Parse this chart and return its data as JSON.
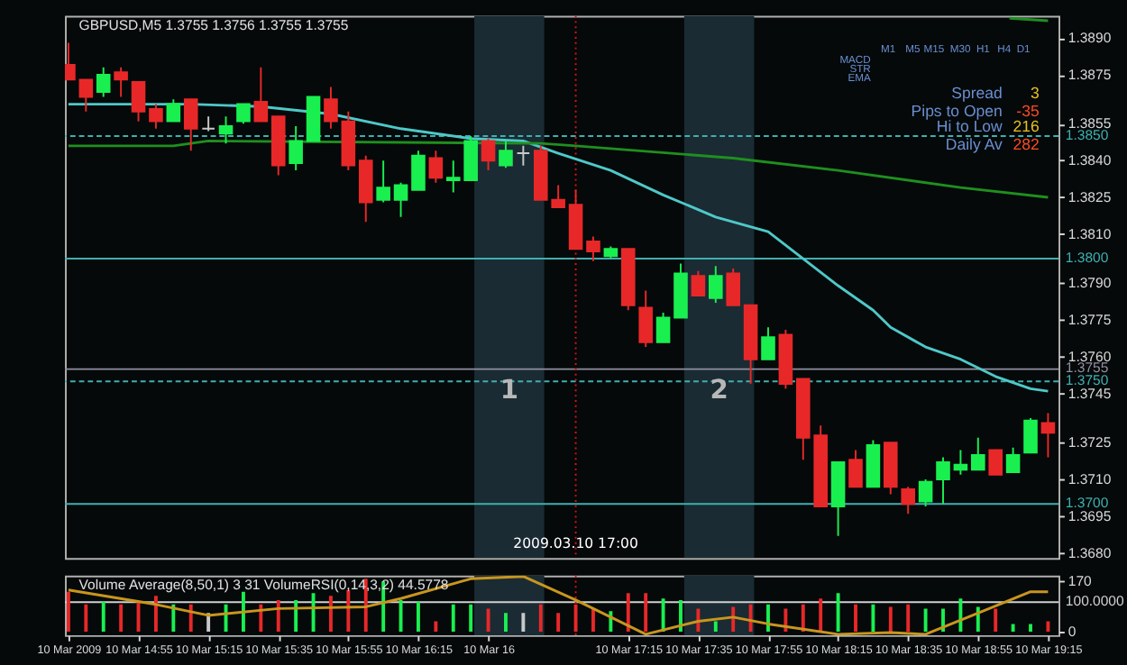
{
  "chart_data": [
    {
      "type": "candlestick",
      "title": "GBPUSD,M5  1.3755 1.3756 1.3755 1.3755",
      "x": [
        "2009-03-10T14:35",
        "2009-03-10T14:40",
        "2009-03-10T14:45",
        "2009-03-10T14:50",
        "2009-03-10T14:55",
        "2009-03-10T15:00",
        "2009-03-10T15:05",
        "2009-03-10T15:10",
        "2009-03-10T15:15",
        "2009-03-10T15:20",
        "2009-03-10T15:25",
        "2009-03-10T15:30",
        "2009-03-10T15:35",
        "2009-03-10T15:40",
        "2009-03-10T15:45",
        "2009-03-10T15:50",
        "2009-03-10T15:55",
        "2009-03-10T16:00",
        "2009-03-10T16:05",
        "2009-03-10T16:10",
        "2009-03-10T16:15",
        "2009-03-10T16:20",
        "2009-03-10T16:25",
        "2009-03-10T16:30",
        "2009-03-10T16:35",
        "2009-03-10T16:40",
        "2009-03-10T16:45",
        "2009-03-10T16:50",
        "2009-03-10T16:55",
        "2009-03-10T17:00",
        "2009-03-10T17:05",
        "2009-03-10T17:10",
        "2009-03-10T17:15",
        "2009-03-10T17:20",
        "2009-03-10T17:25",
        "2009-03-10T17:30",
        "2009-03-10T17:35",
        "2009-03-10T17:40",
        "2009-03-10T17:45",
        "2009-03-10T17:50",
        "2009-03-10T17:55",
        "2009-03-10T18:00",
        "2009-03-10T18:05",
        "2009-03-10T18:10",
        "2009-03-10T18:15",
        "2009-03-10T18:20",
        "2009-03-10T18:25",
        "2009-03-10T18:30",
        "2009-03-10T18:35",
        "2009-03-10T18:40",
        "2009-03-10T18:45",
        "2009-03-10T18:50",
        "2009-03-10T18:55",
        "2009-03-10T19:00",
        "2009-03-10T19:05",
        "2009-03-10T19:10",
        "2009-03-10T19:15"
      ],
      "ohlc": [
        [
          1.3879,
          1.3888,
          1.3873,
          1.3873
        ],
        [
          1.3873,
          1.3873,
          1.386,
          1.3866
        ],
        [
          1.3868,
          1.3878,
          1.3866,
          1.3875
        ],
        [
          1.3876,
          1.3878,
          1.3866,
          1.3873
        ],
        [
          1.3872,
          1.3872,
          1.3856,
          1.386
        ],
        [
          1.3861,
          1.3863,
          1.3853,
          1.3856
        ],
        [
          1.3856,
          1.3865,
          1.3856,
          1.3863
        ],
        [
          1.3865,
          1.3865,
          1.3844,
          1.3853
        ],
        [
          1.3853,
          1.3858,
          1.3852,
          1.3853
        ],
        [
          1.3851,
          1.3858,
          1.3847,
          1.3854
        ],
        [
          1.3856,
          1.3863,
          1.3855,
          1.3863
        ],
        [
          1.3864,
          1.3878,
          1.3856,
          1.3856
        ],
        [
          1.3858,
          1.3858,
          1.3834,
          1.3838
        ],
        [
          1.3839,
          1.3854,
          1.3836,
          1.3848
        ],
        [
          1.3848,
          1.3866,
          1.3848,
          1.3866
        ],
        [
          1.3865,
          1.387,
          1.3853,
          1.3856
        ],
        [
          1.3856,
          1.386,
          1.3836,
          1.3838
        ],
        [
          1.384,
          1.3842,
          1.3815,
          1.3823
        ],
        [
          1.3824,
          1.384,
          1.3823,
          1.3829
        ],
        [
          1.3824,
          1.3831,
          1.3817,
          1.383
        ],
        [
          1.3828,
          1.3844,
          1.3828,
          1.3842
        ],
        [
          1.3841,
          1.3844,
          1.3831,
          1.3833
        ],
        [
          1.3832,
          1.384,
          1.3827,
          1.3833
        ],
        [
          1.3832,
          1.385,
          1.3832,
          1.3848
        ],
        [
          1.3848,
          1.3849,
          1.3836,
          1.384
        ],
        [
          1.3838,
          1.3848,
          1.3837,
          1.3844
        ],
        [
          1.3843,
          1.3846,
          1.3838,
          1.3843
        ],
        [
          1.3844,
          1.3846,
          1.3824,
          1.3824
        ],
        [
          1.3824,
          1.383,
          1.3821,
          1.3821
        ],
        [
          1.3822,
          1.3828,
          1.3804,
          1.3804
        ],
        [
          1.3807,
          1.3809,
          1.3799,
          1.3803
        ],
        [
          1.3801,
          1.3805,
          1.38,
          1.3804
        ],
        [
          1.3804,
          1.3804,
          1.3779,
          1.3781
        ],
        [
          1.378,
          1.3787,
          1.3764,
          1.3766
        ],
        [
          1.3766,
          1.3778,
          1.3766,
          1.3776
        ],
        [
          1.3776,
          1.3798,
          1.3776,
          1.3794
        ],
        [
          1.3793,
          1.3795,
          1.3785,
          1.3785
        ],
        [
          1.3784,
          1.3797,
          1.3782,
          1.3793
        ],
        [
          1.3794,
          1.3796,
          1.3781,
          1.3781
        ],
        [
          1.3781,
          1.3781,
          1.3749,
          1.3759
        ],
        [
          1.3759,
          1.3772,
          1.3759,
          1.3768
        ],
        [
          1.3769,
          1.3771,
          1.3747,
          1.3749
        ],
        [
          1.3751,
          1.3751,
          1.3718,
          1.3727
        ],
        [
          1.3728,
          1.3732,
          1.3699,
          1.3699
        ],
        [
          1.3699,
          1.3717,
          1.3687,
          1.3717
        ],
        [
          1.3718,
          1.3722,
          1.3707,
          1.3707
        ],
        [
          1.3707,
          1.3726,
          1.3707,
          1.3724
        ],
        [
          1.3725,
          1.3725,
          1.3704,
          1.3707
        ],
        [
          1.3706,
          1.3707,
          1.3696,
          1.37
        ],
        [
          1.3701,
          1.371,
          1.3699,
          1.3709
        ],
        [
          1.371,
          1.3719,
          1.37,
          1.3717
        ],
        [
          1.3714,
          1.3722,
          1.3712,
          1.3716
        ],
        [
          1.3714,
          1.3727,
          1.3714,
          1.372
        ],
        [
          1.3722,
          1.3722,
          1.3712,
          1.3712
        ],
        [
          1.3713,
          1.3723,
          1.3713,
          1.372
        ],
        [
          1.3721,
          1.3735,
          1.3721,
          1.3734
        ],
        [
          1.3733,
          1.3737,
          1.3719,
          1.3729
        ]
      ],
      "colors": [
        "#e82828",
        "#e82828",
        "#19f050",
        "#e82828",
        "#e82828",
        "#e82828",
        "#19f050",
        "#e82828",
        "#c8c8c8",
        "#19f050",
        "#19f050",
        "#e82828",
        "#e82828",
        "#19f050",
        "#19f050",
        "#e82828",
        "#e82828",
        "#e82828",
        "#19f050",
        "#19f050",
        "#19f050",
        "#e82828",
        "#19f050",
        "#19f050",
        "#e82828",
        "#19f050",
        "#c8c8c8",
        "#e82828",
        "#e82828",
        "#e82828",
        "#e82828",
        "#19f050",
        "#e82828",
        "#e82828",
        "#19f050",
        "#19f050",
        "#e82828",
        "#19f050",
        "#e82828",
        "#e82828",
        "#19f050",
        "#e82828",
        "#e82828",
        "#e82828",
        "#19f050",
        "#e82828",
        "#19f050",
        "#e82828",
        "#e82828",
        "#19f050",
        "#19f050",
        "#19f050",
        "#19f050",
        "#e82828",
        "#19f050",
        "#19f050",
        "#e82828"
      ],
      "series": [
        {
          "type": "line",
          "color": "#4fc8c8",
          "x": [
            "2009-03-10T14:35",
            "2009-03-10T14:55",
            "2009-03-10T15:10",
            "2009-03-10T15:30",
            "2009-03-10T15:50",
            "2009-03-10T16:10",
            "2009-03-10T16:30",
            "2009-03-10T16:45",
            "2009-03-10T16:55",
            "2009-03-10T17:10",
            "2009-03-10T17:25",
            "2009-03-10T17:40",
            "2009-03-10T17:55",
            "2009-03-10T18:05",
            "2009-03-10T18:15",
            "2009-03-10T18:25",
            "2009-03-10T18:30",
            "2009-03-10T18:40",
            "2009-03-10T18:50",
            "2009-03-10T19:00",
            "2009-03-10T19:10",
            "2009-03-10T19:15"
          ],
          "values": [
            1.3863,
            1.3863,
            1.3863,
            1.3862,
            1.3859,
            1.3853,
            1.3849,
            1.3848,
            1.3843,
            1.3836,
            1.3826,
            1.3817,
            1.3811,
            1.38,
            1.3789,
            1.3779,
            1.3772,
            1.3764,
            1.3759,
            1.3752,
            1.3747,
            1.3746
          ]
        },
        {
          "type": "line",
          "color": "#1f8f1f",
          "x": [
            "2009-03-10T14:35",
            "2009-03-10T15:05",
            "2009-03-10T15:15",
            "2009-03-10T16:50",
            "2009-03-10T17:00",
            "2009-03-10T17:45",
            "2009-03-10T18:15",
            "2009-03-10T18:50",
            "2009-03-10T19:15"
          ],
          "values": [
            1.3846,
            1.3846,
            1.3848,
            1.3847,
            1.3846,
            1.3841,
            1.3836,
            1.3829,
            1.3825
          ]
        },
        {
          "type": "line",
          "color": "#1f8f1f",
          "x": [
            "2009-03-10T19:04",
            "2009-03-10T19:15"
          ],
          "values": [
            1.3898,
            1.3897
          ]
        }
      ],
      "xlim": [
        "2009-03-10T14:34",
        "2009-03-10T19:18"
      ],
      "ylim": [
        1.3678,
        1.3899
      ],
      "yticks": [
        {
          "value": 1.389,
          "label": "1.3890"
        },
        1.3875,
        1.3855,
        {
          "value": 1.384,
          "label": "1.3840"
        },
        1.3825,
        {
          "value": 1.381,
          "label": "1.3810"
        },
        {
          "value": 1.379,
          "label": "1.3790"
        },
        1.3775,
        {
          "value": 1.376,
          "label": "1.3760"
        },
        1.3745,
        1.3725,
        {
          "value": 1.371,
          "label": "1.3710"
        },
        1.3695,
        {
          "value": 1.368,
          "label": "1.3680"
        }
      ],
      "tick_labels": "y",
      "ref_lines": [
        {
          "axis": "y",
          "value": 1.385,
          "label": "1.3850",
          "color": "#3fb0b0",
          "line_style": "dashed"
        },
        {
          "axis": "y",
          "value": 1.38,
          "label": "1.3800",
          "color": "#3fb0b0",
          "line_style": "solid"
        },
        {
          "axis": "y",
          "value": 1.3755,
          "label": "1.3755",
          "color": "#9090a0",
          "line_style": "solid"
        },
        {
          "axis": "y",
          "value": 1.375,
          "label": "1.3750",
          "color": "#3fb0b0",
          "line_style": "dashed"
        },
        {
          "axis": "y",
          "value": 1.37,
          "label": "1.3700",
          "color": "#3fb0b0",
          "line_style": "solid"
        },
        {
          "axis": "x",
          "value": "2009-03-10T17:00",
          "label": "2009.03.10 17:00",
          "color": "#e01010",
          "line_style": "dotted"
        }
      ],
      "bands": [
        {
          "axis": "x",
          "from": "2009-03-10T16:31",
          "to": "2009-03-10T16:51",
          "label": "1",
          "color": "#1a2b33"
        },
        {
          "axis": "x",
          "from": "2009-03-10T17:31",
          "to": "2009-03-10T17:51",
          "label": "2",
          "color": "#1a2b33"
        }
      ],
      "annotations": [
        "M1",
        "M5",
        "M15",
        "M30",
        "H1",
        "H4",
        "D1",
        "MACD",
        "STR",
        "EMA",
        "Spread",
        "3",
        "Pips to Open",
        "-35",
        "Hi to Low",
        "216",
        "Daily Av",
        "282"
      ]
    },
    {
      "type": "bar",
      "title": "Volume Average(8,50,1) 3 31  VolumeRSI(0,14,3,2) 44.5778",
      "series": [
        {
          "type": "bar",
          "x": [
            "2009-03-10T14:35",
            "2009-03-10T14:40",
            "2009-03-10T14:45",
            "2009-03-10T14:50",
            "2009-03-10T14:55",
            "2009-03-10T15:00",
            "2009-03-10T15:05",
            "2009-03-10T15:10",
            "2009-03-10T15:15",
            "2009-03-10T15:20",
            "2009-03-10T15:25",
            "2009-03-10T15:30",
            "2009-03-10T15:35",
            "2009-03-10T15:40",
            "2009-03-10T15:45",
            "2009-03-10T15:50",
            "2009-03-10T15:55",
            "2009-03-10T16:00",
            "2009-03-10T16:05",
            "2009-03-10T16:10",
            "2009-03-10T16:15",
            "2009-03-10T16:20",
            "2009-03-10T16:25",
            "2009-03-10T16:30",
            "2009-03-10T16:35",
            "2009-03-10T16:40",
            "2009-03-10T16:45",
            "2009-03-10T16:50",
            "2009-03-10T16:55",
            "2009-03-10T17:00",
            "2009-03-10T17:05",
            "2009-03-10T17:10",
            "2009-03-10T17:15",
            "2009-03-10T17:20",
            "2009-03-10T17:25",
            "2009-03-10T17:30",
            "2009-03-10T17:35",
            "2009-03-10T17:40",
            "2009-03-10T17:45",
            "2009-03-10T17:50",
            "2009-03-10T17:55",
            "2009-03-10T18:00",
            "2009-03-10T18:05",
            "2009-03-10T18:10",
            "2009-03-10T18:15",
            "2009-03-10T18:20",
            "2009-03-10T18:25",
            "2009-03-10T18:30",
            "2009-03-10T18:35",
            "2009-03-10T18:40",
            "2009-03-10T18:45",
            "2009-03-10T18:50",
            "2009-03-10T18:55",
            "2009-03-10T19:00",
            "2009-03-10T19:05",
            "2009-03-10T19:10",
            "2009-03-10T19:15"
          ],
          "values": [
            135,
            92,
            101,
            92,
            101,
            121,
            92,
            92,
            63,
            92,
            135,
            92,
            107,
            107,
            130,
            121,
            141,
            179,
            170,
            107,
            101,
            35,
            92,
            92,
            78,
            63,
            63,
            92,
            63,
            92,
            78,
            69,
            130,
            130,
            112,
            107,
            78,
            35,
            84,
            92,
            92,
            78,
            92,
            112,
            130,
            92,
            92,
            84,
            92,
            78,
            78,
            112,
            84,
            78,
            26,
            26,
            35
          ],
          "colors": [
            "#e82828",
            "#e82828",
            "#19f050",
            "#e82828",
            "#e82828",
            "#e82828",
            "#19f050",
            "#e82828",
            "#c8c8c8",
            "#19f050",
            "#19f050",
            "#e82828",
            "#e82828",
            "#19f050",
            "#19f050",
            "#e82828",
            "#e82828",
            "#e82828",
            "#19f050",
            "#19f050",
            "#19f050",
            "#e82828",
            "#19f050",
            "#19f050",
            "#e82828",
            "#19f050",
            "#c8c8c8",
            "#e82828",
            "#e82828",
            "#e82828",
            "#e82828",
            "#19f050",
            "#e82828",
            "#e82828",
            "#19f050",
            "#19f050",
            "#e82828",
            "#19f050",
            "#e82828",
            "#e82828",
            "#19f050",
            "#e82828",
            "#e82828",
            "#e82828",
            "#19f050",
            "#e82828",
            "#19f050",
            "#e82828",
            "#e82828",
            "#19f050",
            "#19f050",
            "#19f050",
            "#19f050",
            "#e82828",
            "#19f050",
            "#19f050",
            "#e82828"
          ]
        },
        {
          "type": "line",
          "color": "#c8961e",
          "x": [
            "2009-03-10T14:35",
            "2009-03-10T15:00",
            "2009-03-10T15:15",
            "2009-03-10T15:35",
            "2009-03-10T16:00",
            "2009-03-10T16:10",
            "2009-03-10T16:30",
            "2009-03-10T16:45",
            "2009-03-10T17:00",
            "2009-03-10T17:20",
            "2009-03-10T17:35",
            "2009-03-10T17:45",
            "2009-03-10T17:55",
            "2009-03-10T18:15",
            "2009-03-10T18:30",
            "2009-03-10T18:40",
            "2009-03-10T18:55",
            "2009-03-10T19:10",
            "2009-03-10T19:15"
          ],
          "values": [
            141,
            92,
            55,
            78,
            84,
            112,
            179,
            187,
            107,
            -9,
            35,
            49,
            26,
            -9,
            -3,
            -9,
            63,
            135,
            135
          ]
        }
      ],
      "xlim": [
        "2009-03-10T14:34",
        "2009-03-10T19:18"
      ],
      "xticks": [
        {
          "value": "2009-03-10T14:35",
          "label": "10 Mar 2009"
        },
        {
          "value": "2009-03-10T14:55",
          "label": "10 Mar 14:55"
        },
        {
          "value": "2009-03-10T15:15",
          "label": "10 Mar 15:15"
        },
        {
          "value": "2009-03-10T15:35",
          "label": "10 Mar 15:35"
        },
        {
          "value": "2009-03-10T15:55",
          "label": "10 Mar 15:55"
        },
        {
          "value": "2009-03-10T16:15",
          "label": "10 Mar 16:15"
        },
        {
          "value": "2009-03-10T16:35",
          "label": "10 Mar 16"
        },
        {
          "value": "2009-03-10T17:15",
          "label": "10 Mar 17:15"
        },
        {
          "value": "2009-03-10T17:35",
          "label": "10 Mar 17:35"
        },
        {
          "value": "2009-03-10T17:55",
          "label": "10 Mar 17:55"
        },
        {
          "value": "2009-03-10T18:15",
          "label": "10 Mar 18:15"
        },
        {
          "value": "2009-03-10T18:35",
          "label": "10 Mar 18:35"
        },
        {
          "value": "2009-03-10T18:55",
          "label": "10 Mar 18:55"
        },
        {
          "value": "2009-03-10T19:15",
          "label": "10 Mar 19:15"
        }
      ],
      "ylim": [
        -12,
        190
      ],
      "yticks": [
        0,
        170
      ],
      "ref_lines": [
        {
          "axis": "y",
          "value": 100,
          "label": "100.0000",
          "color": "#d0d0d0",
          "line_style": "solid"
        },
        {
          "axis": "x",
          "value": "2009-03-10T17:00",
          "color": "#e01010",
          "line_style": "dotted"
        }
      ],
      "bands": [
        {
          "axis": "x",
          "from": "2009-03-10T16:31",
          "to": "2009-03-10T16:51",
          "color": "#1a2b33"
        },
        {
          "axis": "x",
          "from": "2009-03-10T17:31",
          "to": "2009-03-10T17:51",
          "color": "#1a2b33"
        }
      ]
    }
  ]
}
